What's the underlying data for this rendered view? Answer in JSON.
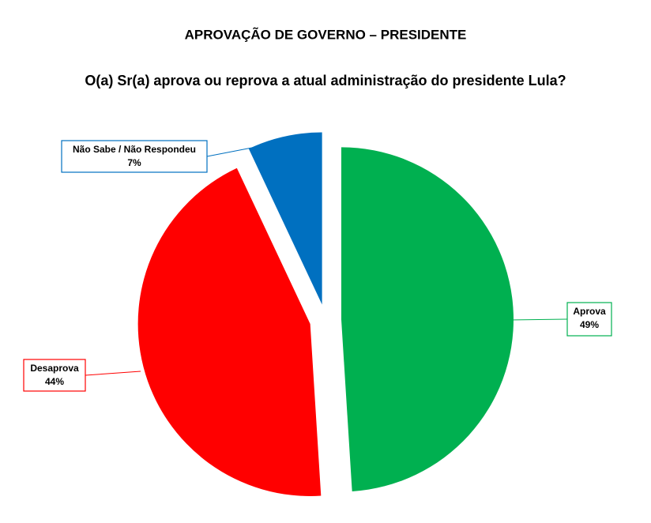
{
  "chart_data": {
    "type": "pie",
    "title": "APROVAÇÃO DE GOVERNO – PRESIDENTE",
    "subtitle": "O(a) Sr(a) aprova ou reprova a atual administração do presidente Lula?",
    "categories": [
      "Aprova",
      "Desaprova",
      "Não Sabe / Não Respondeu"
    ],
    "values": [
      49,
      44,
      7
    ],
    "value_labels": [
      "49%",
      "44%",
      "7%"
    ],
    "colors": [
      "#00b050",
      "#ff0000",
      "#0070c0"
    ]
  }
}
